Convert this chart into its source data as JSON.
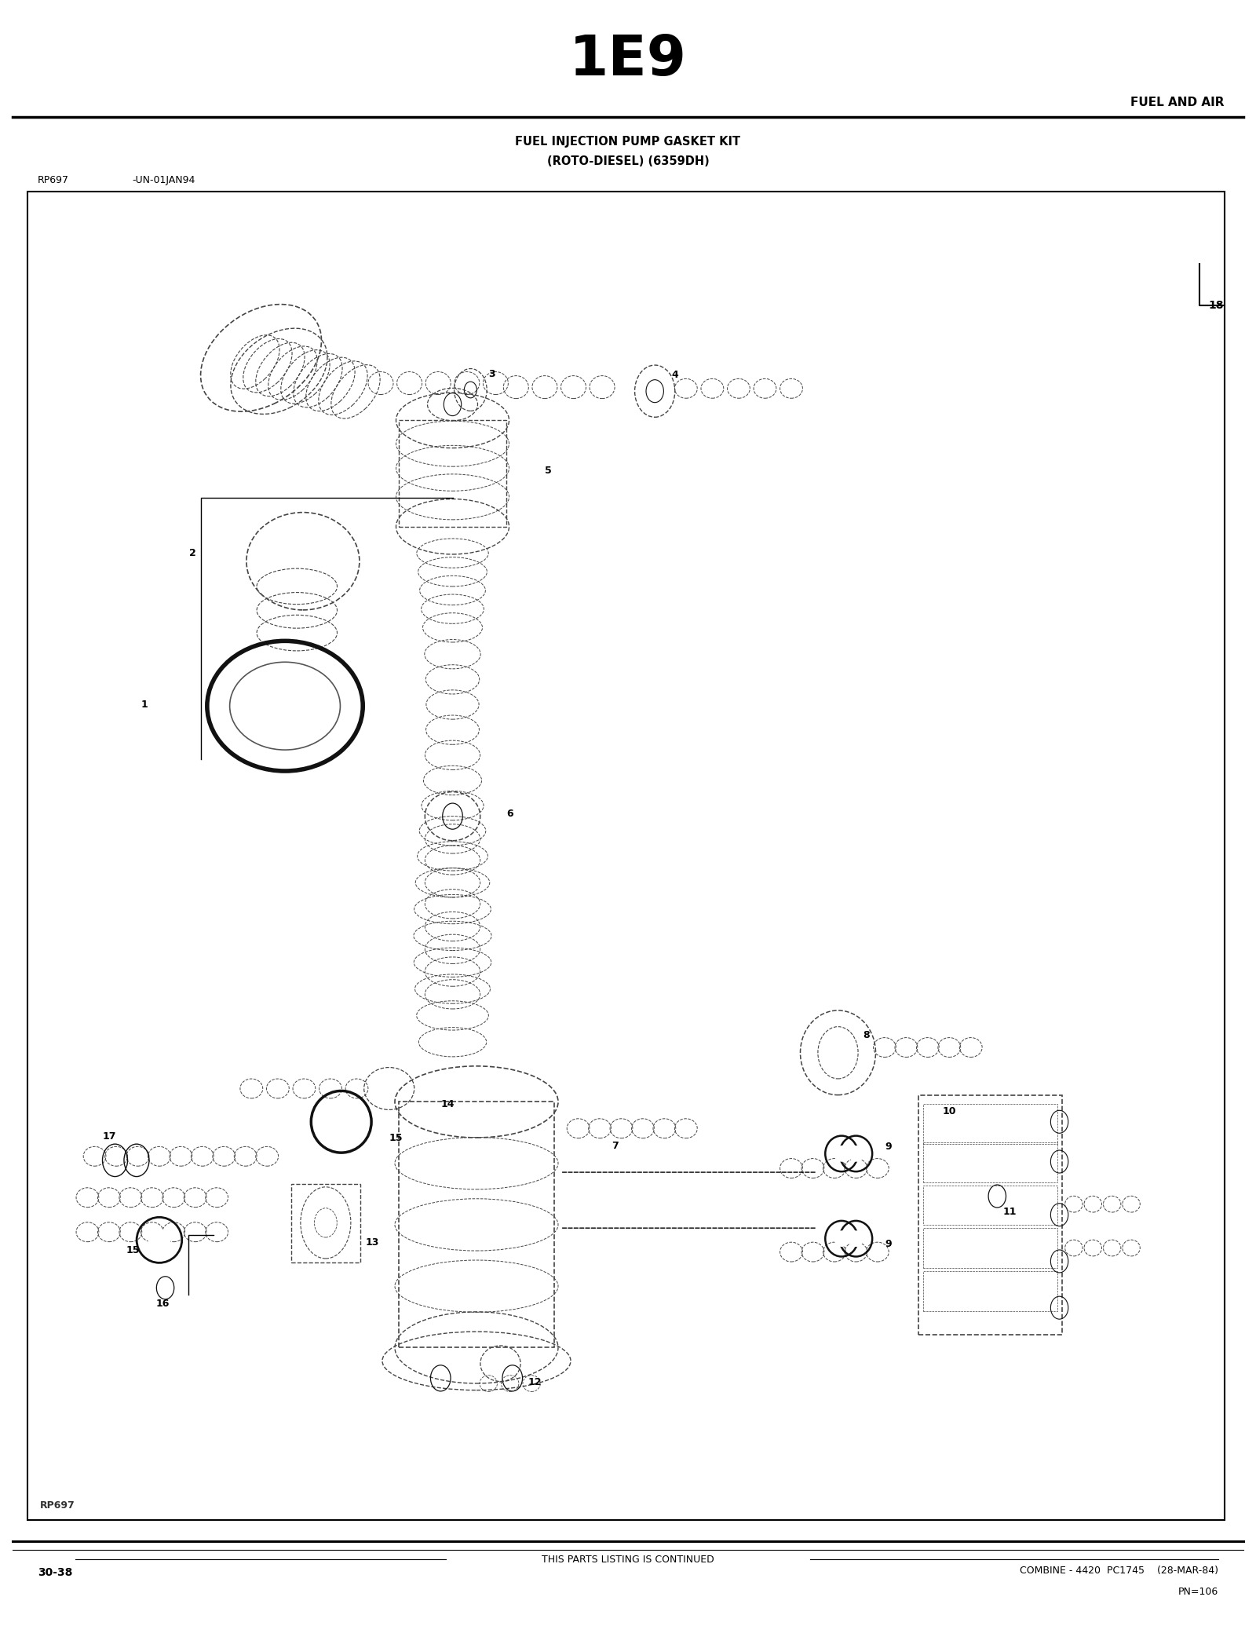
{
  "page_title": "1E9",
  "section_title": "FUEL AND AIR",
  "diagram_title_line1": "FUEL INJECTION PUMP GASKET KIT",
  "diagram_title_line2": "(ROTO-DIESEL) (6359DH)",
  "ref_left": "RP697",
  "ref_date": "-UN-01JAN94",
  "footer_left": "30-38",
  "footer_center": "THIS PARTS LISTING IS CONTINUED",
  "footer_right": "COMBINE - 4420  PC1745    (28-MAR-84)",
  "footer_right2": "PN=106",
  "watermark": "RP697",
  "bg_color": "#ffffff",
  "text_color": "#000000"
}
